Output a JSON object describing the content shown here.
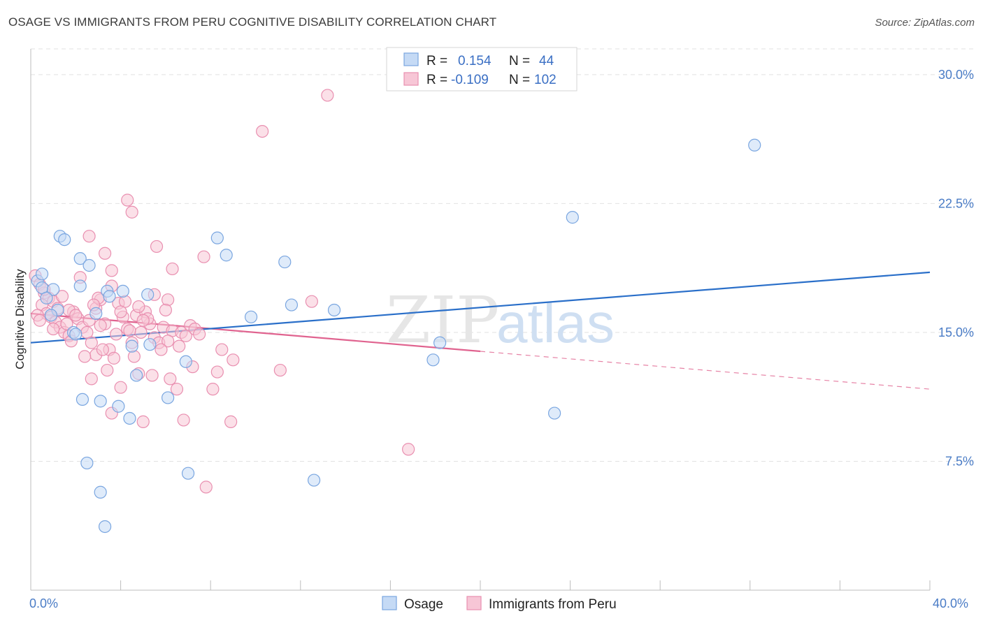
{
  "chart_data": {
    "type": "scatter",
    "title": "OSAGE VS IMMIGRANTS FROM PERU COGNITIVE DISABILITY CORRELATION CHART",
    "source": "Source: ZipAtlas.com",
    "ylabel": "Cognitive Disability",
    "xlim": [
      0,
      40
    ],
    "ylim": [
      0,
      31.5
    ],
    "x_tick_labels": [
      "0.0%",
      "40.0%"
    ],
    "y_ticks": [
      7.5,
      15.0,
      22.5,
      30.0
    ],
    "y_tick_labels": [
      "7.5%",
      "15.0%",
      "22.5%",
      "30.0%"
    ],
    "grid": "horizontal-dashed",
    "watermark": {
      "zip": "ZIP",
      "atlas": "atlas"
    },
    "legend": {
      "placement": "top-center",
      "rows": [
        {
          "r_label": "R =",
          "r_value": "0.154",
          "n_label": "N =",
          "n_value": "44"
        },
        {
          "r_label": "R =",
          "r_value": "-0.109",
          "n_label": "N =",
          "n_value": "102"
        }
      ]
    },
    "series": [
      {
        "name": "Osage",
        "color": "#7aa6e0",
        "fill": "#c5daf5",
        "trend_color": "#2a6fc9",
        "trend": {
          "x0": 0,
          "y0": 14.4,
          "x1": 40,
          "y1": 18.5
        },
        "points": [
          [
            0.3,
            18.0
          ],
          [
            0.5,
            17.6
          ],
          [
            1.0,
            17.5
          ],
          [
            0.7,
            17.0
          ],
          [
            1.2,
            16.3
          ],
          [
            0.9,
            16.0
          ],
          [
            1.3,
            20.6
          ],
          [
            1.5,
            20.4
          ],
          [
            2.2,
            19.3
          ],
          [
            2.6,
            18.9
          ],
          [
            2.2,
            17.7
          ],
          [
            3.4,
            17.4
          ],
          [
            3.5,
            17.1
          ],
          [
            1.9,
            15.0
          ],
          [
            2.9,
            16.1
          ],
          [
            4.1,
            17.4
          ],
          [
            4.5,
            14.2
          ],
          [
            5.2,
            17.2
          ],
          [
            5.3,
            14.3
          ],
          [
            6.1,
            11.2
          ],
          [
            6.9,
            13.3
          ],
          [
            8.3,
            20.5
          ],
          [
            8.7,
            19.5
          ],
          [
            9.8,
            15.9
          ],
          [
            11.3,
            19.1
          ],
          [
            11.6,
            16.6
          ],
          [
            13.5,
            16.3
          ],
          [
            17.9,
            13.4
          ],
          [
            18.2,
            14.4
          ],
          [
            23.3,
            10.3
          ],
          [
            24.1,
            21.7
          ],
          [
            32.2,
            25.9
          ],
          [
            2.3,
            11.1
          ],
          [
            3.1,
            11.0
          ],
          [
            3.9,
            10.7
          ],
          [
            4.4,
            10.0
          ],
          [
            4.7,
            12.5
          ],
          [
            2.5,
            7.4
          ],
          [
            3.1,
            5.7
          ],
          [
            3.3,
            3.7
          ],
          [
            7.0,
            6.8
          ],
          [
            12.6,
            6.4
          ],
          [
            0.5,
            18.4
          ],
          [
            2.0,
            14.9
          ]
        ]
      },
      {
        "name": "Immigrants from Peru",
        "color": "#e98fb0",
        "fill": "#f7c6d6",
        "trend_color": "#e0638f",
        "trend": {
          "x0": 0,
          "y0": 16.1,
          "x1": 20,
          "y1": 13.9
        },
        "trend_ext": {
          "x0": 20,
          "y0": 13.9,
          "x1": 40,
          "y1": 11.7
        },
        "points": [
          [
            0.2,
            18.3
          ],
          [
            0.4,
            17.8
          ],
          [
            0.6,
            17.3
          ],
          [
            0.8,
            17.0
          ],
          [
            1.0,
            16.8
          ],
          [
            1.2,
            16.4
          ],
          [
            0.5,
            16.6
          ],
          [
            0.7,
            16.1
          ],
          [
            0.9,
            15.9
          ],
          [
            1.1,
            15.6
          ],
          [
            1.3,
            15.3
          ],
          [
            1.5,
            15.0
          ],
          [
            1.7,
            14.8
          ],
          [
            1.9,
            16.2
          ],
          [
            2.1,
            15.8
          ],
          [
            2.3,
            15.3
          ],
          [
            2.5,
            15.0
          ],
          [
            2.7,
            14.4
          ],
          [
            2.9,
            16.4
          ],
          [
            3.1,
            16.9
          ],
          [
            3.3,
            15.5
          ],
          [
            3.5,
            14.0
          ],
          [
            3.7,
            13.5
          ],
          [
            3.9,
            16.7
          ],
          [
            4.1,
            15.9
          ],
          [
            4.3,
            15.2
          ],
          [
            4.5,
            14.4
          ],
          [
            4.7,
            16.0
          ],
          [
            4.9,
            15.0
          ],
          [
            5.1,
            16.2
          ],
          [
            5.3,
            15.5
          ],
          [
            5.5,
            14.7
          ],
          [
            5.7,
            14.4
          ],
          [
            5.9,
            15.3
          ],
          [
            6.1,
            16.9
          ],
          [
            6.3,
            15.1
          ],
          [
            6.5,
            11.7
          ],
          [
            6.7,
            15.0
          ],
          [
            6.9,
            14.8
          ],
          [
            7.1,
            15.4
          ],
          [
            7.3,
            15.2
          ],
          [
            7.5,
            14.9
          ],
          [
            7.7,
            19.4
          ],
          [
            8.1,
            11.7
          ],
          [
            8.3,
            12.7
          ],
          [
            8.5,
            14.0
          ],
          [
            9.0,
            13.4
          ],
          [
            8.9,
            9.8
          ],
          [
            2.6,
            20.6
          ],
          [
            3.3,
            19.6
          ],
          [
            3.6,
            18.6
          ],
          [
            4.3,
            22.7
          ],
          [
            4.5,
            22.0
          ],
          [
            5.6,
            20.0
          ],
          [
            6.3,
            18.7
          ],
          [
            11.1,
            12.8
          ],
          [
            12.5,
            16.8
          ],
          [
            13.2,
            28.8
          ],
          [
            10.3,
            26.7
          ],
          [
            16.8,
            8.2
          ],
          [
            2.7,
            12.3
          ],
          [
            3.4,
            12.8
          ],
          [
            3.6,
            10.3
          ],
          [
            4.6,
            13.6
          ],
          [
            5.0,
            9.8
          ],
          [
            5.4,
            12.5
          ],
          [
            6.2,
            12.3
          ],
          [
            6.8,
            9.9
          ],
          [
            7.8,
            6.0
          ],
          [
            4.0,
            11.8
          ],
          [
            2.9,
            13.7
          ],
          [
            3.2,
            14.0
          ],
          [
            4.8,
            12.6
          ],
          [
            5.5,
            17.2
          ],
          [
            6.1,
            14.5
          ],
          [
            3.8,
            14.9
          ],
          [
            2.4,
            13.6
          ],
          [
            1.7,
            16.3
          ],
          [
            0.3,
            16.0
          ],
          [
            1.4,
            17.1
          ],
          [
            2.2,
            18.2
          ],
          [
            3.0,
            17.0
          ],
          [
            3.6,
            17.7
          ],
          [
            4.2,
            16.8
          ],
          [
            4.8,
            16.5
          ],
          [
            5.2,
            15.8
          ],
          [
            1.8,
            14.5
          ],
          [
            2.6,
            15.7
          ],
          [
            0.6,
            17.5
          ],
          [
            1.0,
            15.2
          ],
          [
            2.0,
            16.0
          ],
          [
            3.1,
            15.4
          ],
          [
            4.4,
            15.1
          ],
          [
            5.8,
            14.0
          ],
          [
            6.6,
            14.2
          ],
          [
            7.2,
            13.0
          ],
          [
            0.4,
            15.7
          ],
          [
            1.6,
            15.5
          ],
          [
            2.8,
            16.6
          ],
          [
            4.0,
            16.2
          ],
          [
            5.0,
            15.7
          ],
          [
            6.0,
            16.3
          ]
        ]
      }
    ]
  }
}
